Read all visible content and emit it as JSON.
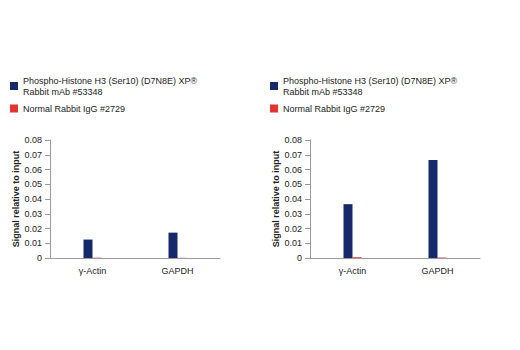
{
  "chart_data": [
    {
      "type": "bar",
      "categories": [
        "γ-Actin",
        "GAPDH"
      ],
      "series": [
        {
          "name": "Phospho-Histone H3 (Ser10) (D7N8E) XP® Rabbit mAb #53348",
          "color": "#16296b",
          "values": [
            0.0125,
            0.0172
          ]
        },
        {
          "name": "Normal Rabbit IgG #2729",
          "color": "#e3342f",
          "values": [
            0.0002,
            0.0001
          ]
        }
      ],
      "ylabel": "Signal relative to input",
      "ylim": [
        0,
        0.08
      ],
      "yticks": [
        0,
        0.01,
        0.02,
        0.03,
        0.04,
        0.05,
        0.06,
        0.07,
        0.08
      ],
      "grid": false,
      "legend": "top-left"
    },
    {
      "type": "bar",
      "categories": [
        "γ-Actin",
        "GAPDH"
      ],
      "series": [
        {
          "name": "Phospho-Histone H3 (Ser10) (D7N8E) XP® Rabbit mAb #53348",
          "color": "#16296b",
          "values": [
            0.0365,
            0.0665
          ]
        },
        {
          "name": "Normal Rabbit IgG #2729",
          "color": "#e3342f",
          "values": [
            0.0005,
            0.0003
          ]
        }
      ],
      "ylabel": "Signal relative to input",
      "ylim": [
        0,
        0.08
      ],
      "yticks": [
        0,
        0.01,
        0.02,
        0.03,
        0.04,
        0.05,
        0.06,
        0.07,
        0.08
      ],
      "grid": false,
      "legend": "top-left"
    }
  ]
}
